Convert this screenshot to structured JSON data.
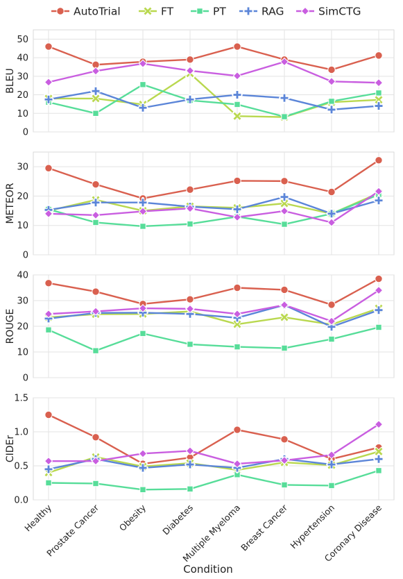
{
  "chart_data": {
    "type": "line",
    "categories": [
      "Healthy",
      "Prostate Cancer",
      "Obesity",
      "Diabetes",
      "Multiple Myeloma",
      "Breast Cancer",
      "Hypertension",
      "Coronary Disease"
    ],
    "xlabel": "Condition",
    "legend": {
      "placement": "top"
    },
    "grid": true,
    "series_styles": [
      {
        "name": "AutoTrial",
        "color": "#d9604f",
        "marker": "circle"
      },
      {
        "name": "FT",
        "color": "#b9d84f",
        "marker": "x"
      },
      {
        "name": "PT",
        "color": "#57dd99",
        "marker": "square"
      },
      {
        "name": "RAG",
        "color": "#5b85d8",
        "marker": "plus"
      },
      {
        "name": "SimCTG",
        "color": "#c95ee0",
        "marker": "diamond"
      }
    ],
    "panels": [
      {
        "ylabel": "BLEU",
        "ylim": [
          0,
          55
        ],
        "yticks": [
          0,
          10,
          20,
          30,
          40,
          50
        ],
        "ytick_labels": [
          "0",
          "10",
          "20",
          "30",
          "40",
          "50"
        ],
        "series": [
          {
            "name": "AutoTrial",
            "values": [
              46,
              36.2,
              37.8,
              39,
              46,
              39,
              33.5,
              41.2
            ]
          },
          {
            "name": "FT",
            "values": [
              18,
              18,
              14.8,
              31.5,
              8.5,
              8,
              16,
              17.3
            ]
          },
          {
            "name": "PT",
            "values": [
              16,
              10,
              25.5,
              17,
              14.8,
              8.2,
              16.5,
              21
            ]
          },
          {
            "name": "RAG",
            "values": [
              17.5,
              22,
              13,
              17.5,
              20,
              18.3,
              12,
              14
            ]
          },
          {
            "name": "SimCTG",
            "values": [
              26.8,
              32.8,
              36.8,
              33,
              30.2,
              37.8,
              27.2,
              26.5
            ]
          }
        ]
      },
      {
        "ylabel": "METEOR",
        "ylim": [
          0,
          35
        ],
        "yticks": [
          0,
          10,
          20,
          30
        ],
        "ytick_labels": [
          "0",
          "10",
          "20",
          "30"
        ],
        "series": [
          {
            "name": "AutoTrial",
            "values": [
              29.5,
              24,
              19.2,
              22.2,
              25.2,
              25.1,
              21.4,
              32.2
            ]
          },
          {
            "name": "FT",
            "values": [
              15,
              18.7,
              15,
              16.5,
              16,
              17.5,
              14,
              21
            ]
          },
          {
            "name": "PT",
            "values": [
              15.5,
              11,
              9.7,
              10.5,
              13,
              10.4,
              14,
              20.5
            ]
          },
          {
            "name": "RAG",
            "values": [
              15.3,
              17.8,
              17.8,
              16.4,
              15.5,
              19.7,
              14,
              18.5
            ]
          },
          {
            "name": "SimCTG",
            "values": [
              14,
              13.5,
              14.8,
              15.8,
              12.8,
              14.9,
              11,
              21.6
            ]
          }
        ]
      },
      {
        "ylabel": "ROUGE",
        "ylim": [
          0,
          40
        ],
        "yticks": [
          0,
          10,
          20,
          30,
          40
        ],
        "ytick_labels": [
          "0",
          "10",
          "20",
          "30",
          "40"
        ],
        "series": [
          {
            "name": "AutoTrial",
            "values": [
              36.8,
              33.5,
              28.7,
              30.5,
              35,
              34.2,
              28.4,
              38.5
            ]
          },
          {
            "name": "FT",
            "values": [
              23.5,
              24.7,
              24.8,
              25.8,
              20.8,
              23.5,
              20.7,
              27
            ]
          },
          {
            "name": "PT",
            "values": [
              18.6,
              10.5,
              17.2,
              13,
              12,
              11.5,
              15,
              19.6
            ]
          },
          {
            "name": "RAG",
            "values": [
              23,
              25.2,
              25.3,
              24.8,
              23.3,
              28.3,
              19.8,
              26.3
            ]
          },
          {
            "name": "SimCTG",
            "values": [
              24.8,
              25.8,
              27,
              26.8,
              24.8,
              28.3,
              22,
              34
            ]
          }
        ]
      },
      {
        "ylabel": "CIDEr",
        "ylim": [
          0,
          1.5
        ],
        "yticks": [
          0,
          0.5,
          1.0,
          1.5
        ],
        "ytick_labels": [
          "0.0",
          "0.5",
          "1.0",
          "1.5"
        ],
        "series": [
          {
            "name": "AutoTrial",
            "values": [
              1.25,
              0.92,
              0.53,
              0.62,
              1.03,
              0.89,
              0.6,
              0.77
            ]
          },
          {
            "name": "FT",
            "values": [
              0.4,
              0.63,
              0.49,
              0.54,
              0.44,
              0.55,
              0.51,
              0.71
            ]
          },
          {
            "name": "PT",
            "values": [
              0.25,
              0.24,
              0.15,
              0.16,
              0.37,
              0.22,
              0.21,
              0.43
            ]
          },
          {
            "name": "RAG",
            "values": [
              0.45,
              0.6,
              0.47,
              0.52,
              0.47,
              0.6,
              0.52,
              0.6
            ]
          },
          {
            "name": "SimCTG",
            "values": [
              0.57,
              0.57,
              0.68,
              0.72,
              0.53,
              0.58,
              0.66,
              1.11
            ]
          }
        ]
      }
    ]
  }
}
